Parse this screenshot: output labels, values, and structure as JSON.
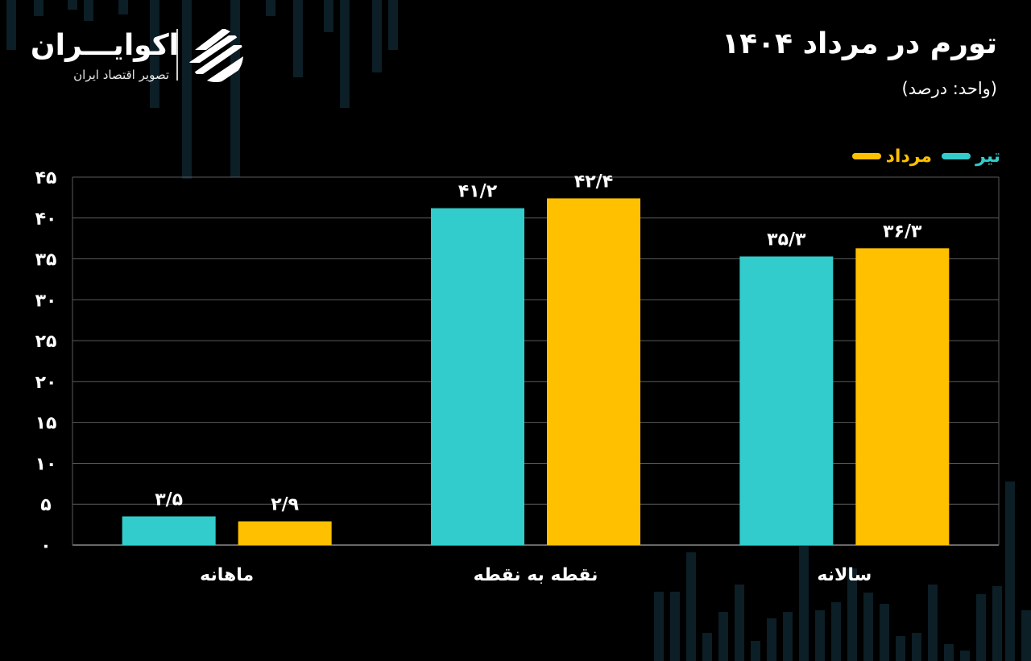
{
  "brand": {
    "name": "اکوایـــران",
    "tagline": "تصویر اقتصاد ایران"
  },
  "header": {
    "title": "تورم در مرداد ۱۴۰۴",
    "unit": "(واحد: درصد)"
  },
  "colors": {
    "background": "#000000",
    "tir": "#33CCCC",
    "mordad": "#FFC000",
    "grid": "#5a5a5a"
  },
  "legend": [
    {
      "label": "مرداد",
      "color": "#FFC000"
    },
    {
      "label": "تیر",
      "color": "#33CCCC"
    }
  ],
  "chart_data": {
    "type": "bar",
    "title": "تورم در مرداد ۱۴۰۴",
    "xlabel": "",
    "ylabel": "",
    "ylim": [
      0,
      45
    ],
    "yticks": [
      0,
      5,
      10,
      15,
      20,
      25,
      30,
      35,
      40,
      45
    ],
    "ytick_labels": [
      "۰",
      "۵",
      "۱۰",
      "۱۵",
      "۲۰",
      "۲۵",
      "۳۰",
      "۳۵",
      "۴۰",
      "۴۵"
    ],
    "grid": true,
    "legend_position": "top-right",
    "categories": [
      "ماهانه",
      "نقطه به نقطه",
      "سالانه"
    ],
    "series": [
      {
        "name": "تیر",
        "color": "#33CCCC",
        "values": [
          3.5,
          41.2,
          35.3
        ],
        "labels": [
          "۳/۵",
          "۴۱/۲",
          "۳۵/۳"
        ]
      },
      {
        "name": "مرداد",
        "color": "#FFC000",
        "values": [
          2.9,
          42.4,
          36.3
        ],
        "labels": [
          "۲/۹",
          "۴۲/۴",
          "۳۶/۳"
        ]
      }
    ]
  }
}
